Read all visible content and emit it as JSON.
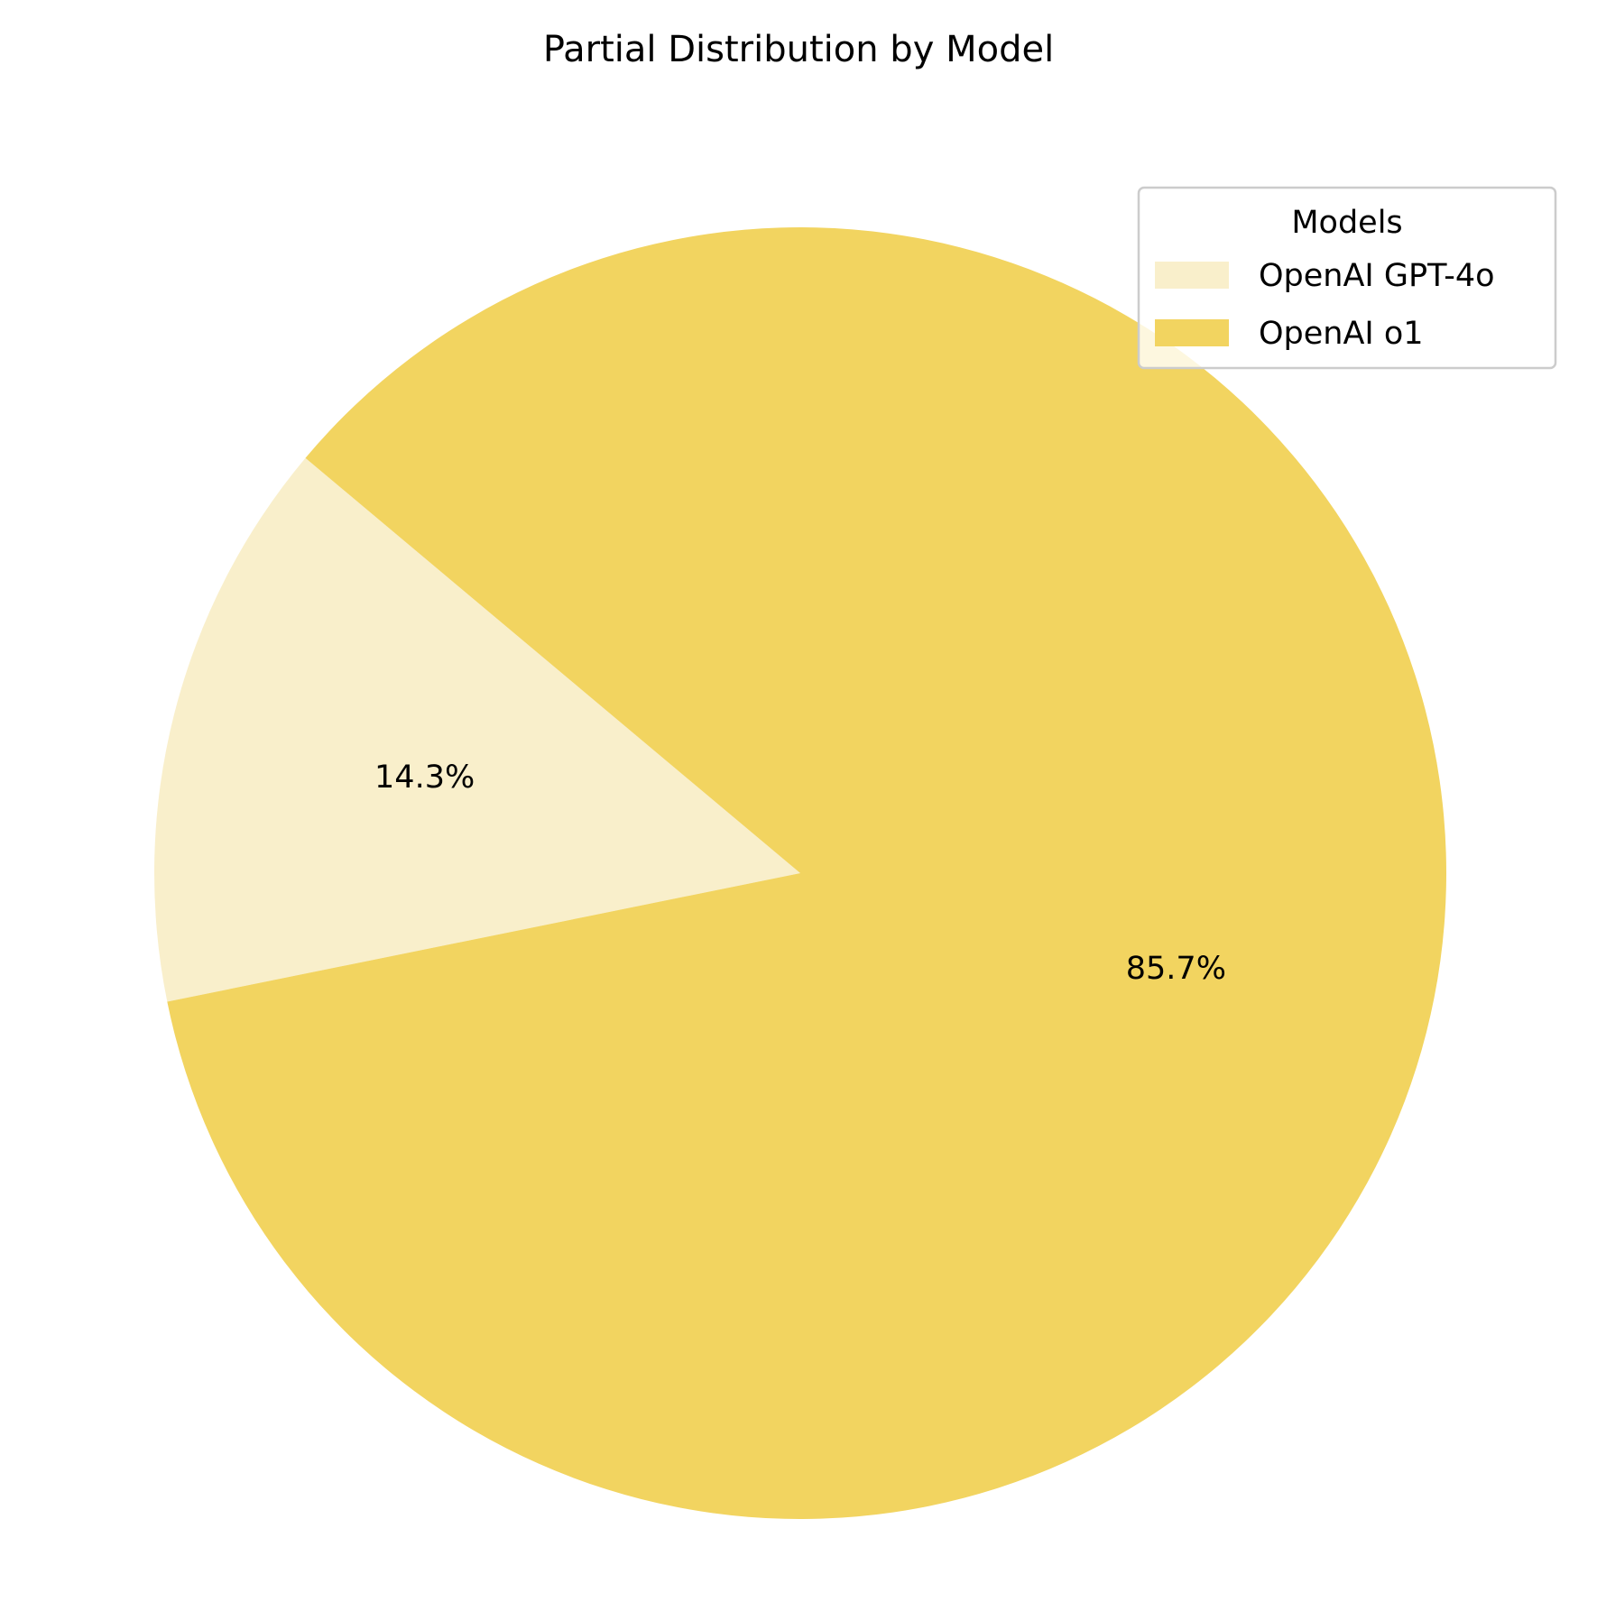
{
  "chart_data": {
    "type": "pie",
    "title": "Partial Distribution by Model",
    "categories": [
      "OpenAI GPT-4o",
      "OpenAI o1"
    ],
    "values": [
      14.3,
      85.7
    ],
    "value_labels": [
      "14.3%",
      "85.7%"
    ],
    "colors": [
      "#f9efcb",
      "#f2d460"
    ],
    "legend": {
      "title": "Models",
      "placement": "top-right"
    }
  }
}
